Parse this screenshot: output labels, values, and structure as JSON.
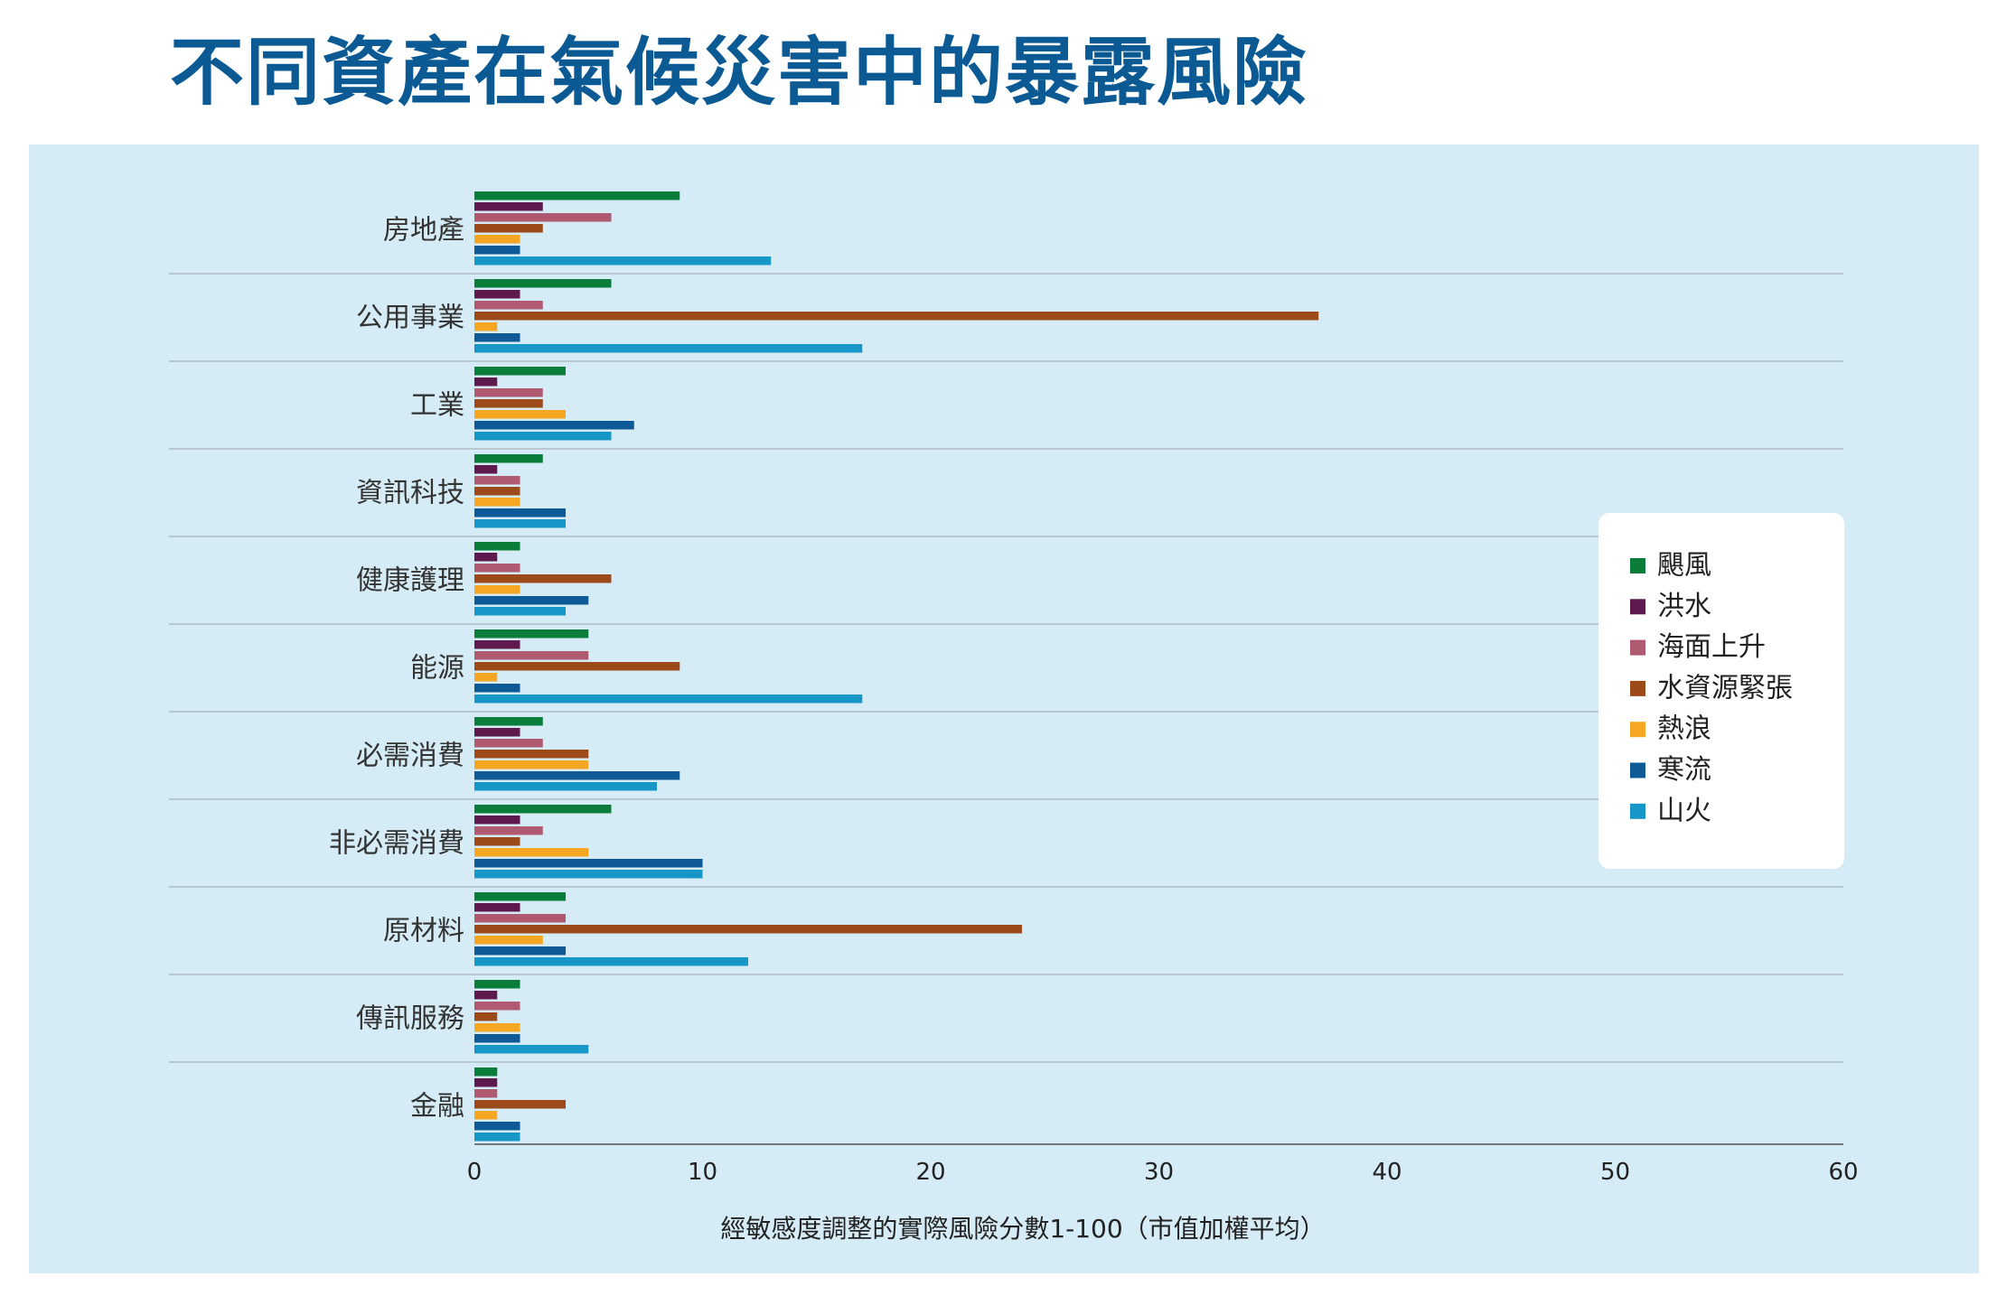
{
  "page_title": "不同資產在氣候災害中的暴露風險",
  "chart_data": {
    "type": "bar",
    "orientation": "horizontal",
    "categories": [
      "房地產",
      "公用事業",
      "工業",
      "資訊科技",
      "健康護理",
      "能源",
      "必需消費",
      "非必需消費",
      "原材料",
      "傳訊服務",
      "金融"
    ],
    "series": [
      {
        "name": "颶風",
        "color": "#0a7d3b",
        "values": [
          9,
          6,
          4,
          3,
          2,
          5,
          3,
          6,
          4,
          2,
          1
        ]
      },
      {
        "name": "洪水",
        "color": "#5e1a4d",
        "values": [
          3,
          2,
          1,
          1,
          1,
          2,
          2,
          2,
          2,
          1,
          1
        ]
      },
      {
        "name": "海面上升",
        "color": "#b05a72",
        "values": [
          6,
          3,
          3,
          2,
          2,
          5,
          3,
          3,
          4,
          2,
          1
        ]
      },
      {
        "name": "水資源緊張",
        "color": "#9c4a1a",
        "values": [
          3,
          37,
          3,
          2,
          6,
          9,
          5,
          2,
          24,
          1,
          4
        ]
      },
      {
        "name": "熱浪",
        "color": "#f5a623",
        "values": [
          2,
          1,
          4,
          2,
          2,
          1,
          5,
          5,
          3,
          2,
          1
        ]
      },
      {
        "name": "寒流",
        "color": "#0d5a96",
        "values": [
          2,
          2,
          7,
          4,
          5,
          2,
          9,
          10,
          4,
          2,
          2
        ]
      },
      {
        "name": "山火",
        "color": "#1797c7",
        "values": [
          13,
          17,
          6,
          4,
          4,
          17,
          8,
          10,
          12,
          5,
          2
        ]
      }
    ],
    "xlim": [
      0,
      60
    ],
    "xticks": [
      "0",
      "10",
      "20",
      "30",
      "40",
      "50",
      "60"
    ],
    "xlabel": "經敏感度調整的實際風險分數1-100（市值加權平均）",
    "legend_position": "right"
  }
}
